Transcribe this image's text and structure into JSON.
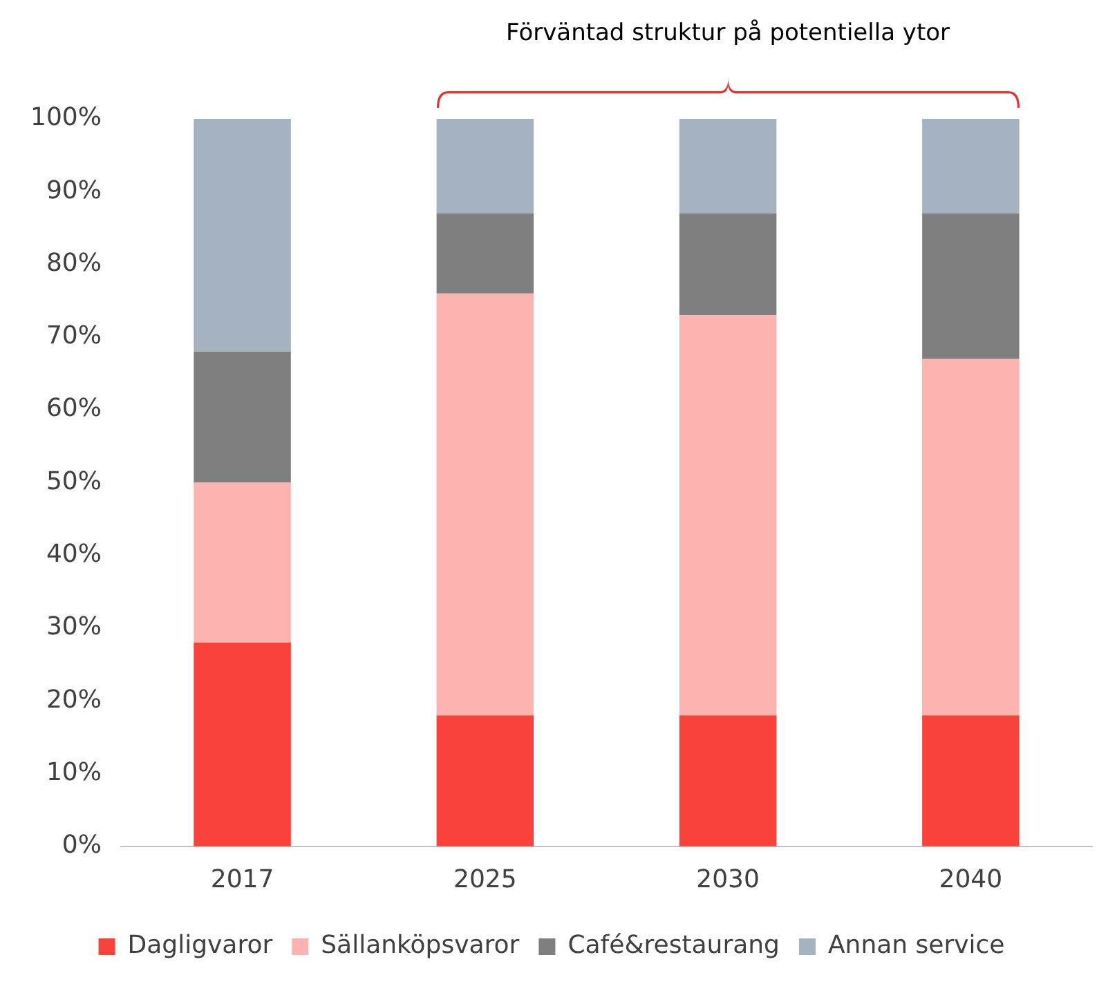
{
  "chart_data": {
    "type": "bar",
    "stacked": true,
    "categories": [
      "2017",
      "2025",
      "2030",
      "2040"
    ],
    "series": [
      {
        "name": "Dagligvaror",
        "color": "#f9423a",
        "values": [
          28,
          18,
          18,
          18
        ]
      },
      {
        "name": "Sällanköpsvaror",
        "color": "#fdb3b0",
        "values": [
          22,
          58,
          55,
          49
        ]
      },
      {
        "name": "Café&restaurang",
        "color": "#7f7f7f",
        "values": [
          18,
          11,
          14,
          20
        ]
      },
      {
        "name": "Annan service",
        "color": "#a5b2c0",
        "values": [
          32,
          13,
          13,
          13
        ]
      }
    ],
    "ylim": [
      0,
      100
    ],
    "yticks": [
      {
        "value": 0,
        "label": "0%"
      },
      {
        "value": 10,
        "label": "10%"
      },
      {
        "value": 20,
        "label": "20%"
      },
      {
        "value": 30,
        "label": "30%"
      },
      {
        "value": 40,
        "label": "40%"
      },
      {
        "value": 50,
        "label": "50%"
      },
      {
        "value": 60,
        "label": "60%"
      },
      {
        "value": 70,
        "label": "70%"
      },
      {
        "value": 80,
        "label": "80%"
      },
      {
        "value": 90,
        "label": "90%"
      },
      {
        "value": 100,
        "label": "100%"
      }
    ],
    "grid": false,
    "legend": "bottom",
    "annotations": [
      "Förväntad struktur på potentiella ytor"
    ]
  }
}
